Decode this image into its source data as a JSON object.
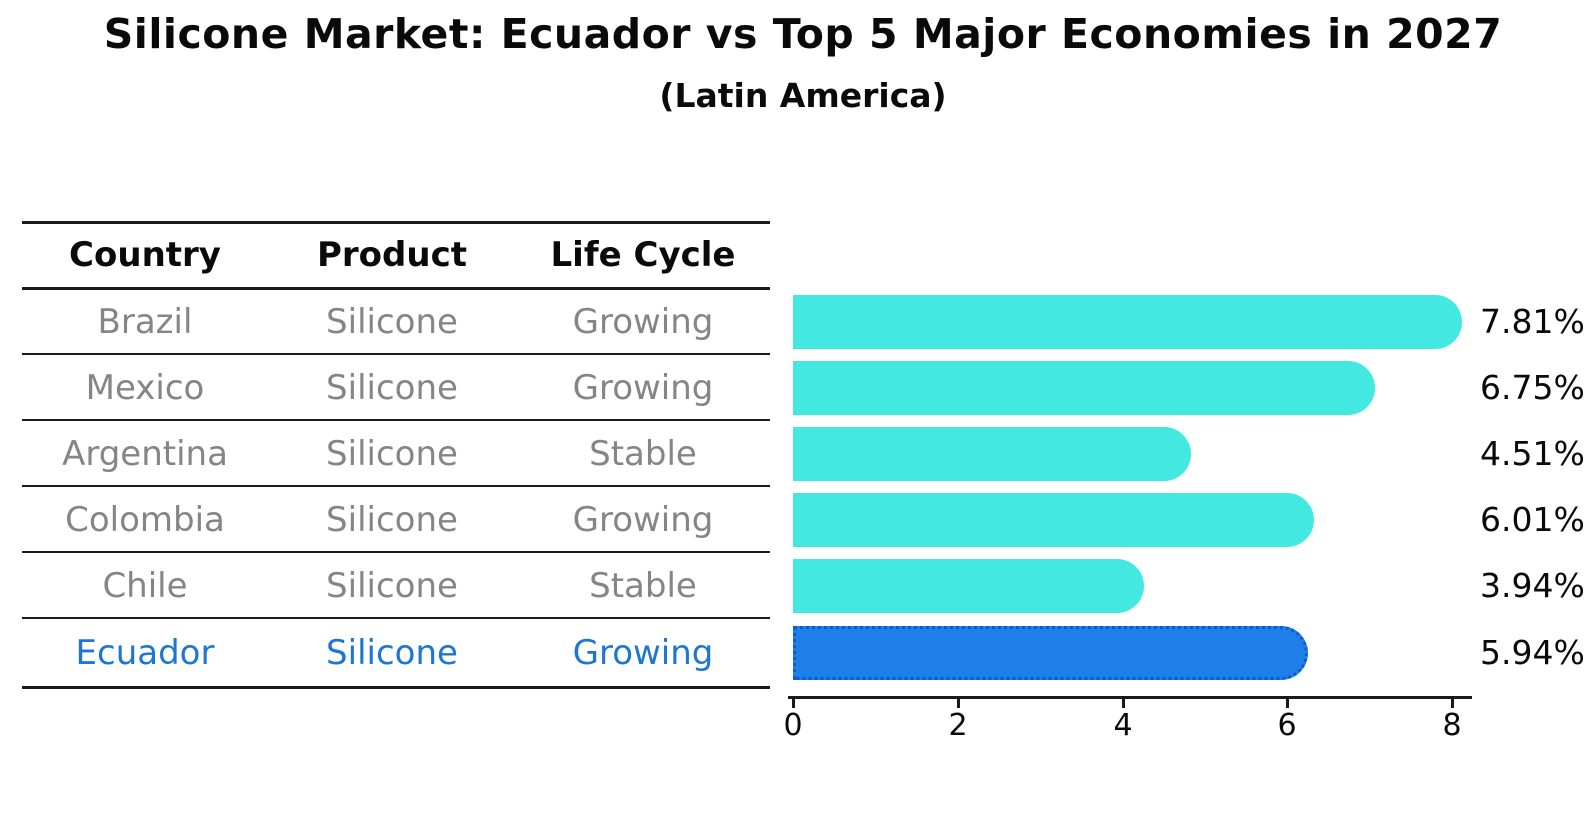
{
  "title": "Silicone Market: Ecuador vs Top 5 Major Economies in 2027",
  "subtitle": "(Latin America)",
  "table": {
    "headers": [
      "Country",
      "Product",
      "Life Cycle"
    ],
    "rows": [
      {
        "country": "Brazil",
        "product": "Silicone",
        "life_cycle": "Growing"
      },
      {
        "country": "Mexico",
        "product": "Silicone",
        "life_cycle": "Growing"
      },
      {
        "country": "Argentina",
        "product": "Silicone",
        "life_cycle": "Stable"
      },
      {
        "country": "Colombia",
        "product": "Silicone",
        "life_cycle": "Growing"
      },
      {
        "country": "Chile",
        "product": "Silicone",
        "life_cycle": "Stable"
      },
      {
        "country": "Ecuador",
        "product": "Silicone",
        "life_cycle": "Growing"
      }
    ],
    "highlighted_row": "Ecuador"
  },
  "chart_data": {
    "type": "bar",
    "orientation": "horizontal",
    "categories": [
      "Brazil",
      "Mexico",
      "Argentina",
      "Colombia",
      "Chile",
      "Ecuador"
    ],
    "values": [
      7.81,
      6.75,
      4.51,
      6.01,
      3.94,
      5.94
    ],
    "value_labels": [
      "7.81%",
      "6.75%",
      "4.51%",
      "6.01%",
      "3.94%",
      "5.94%"
    ],
    "highlighted_category": "Ecuador",
    "xlim": [
      0,
      8
    ],
    "xticks": [
      0,
      2,
      4,
      6,
      8
    ],
    "xtick_labels": [
      "0",
      "2",
      "4",
      "6",
      "8"
    ],
    "bar_color": "#43E8E0",
    "highlight_bar_color": "#1E7FE8",
    "highlight_edge_color": "#0F5BC8",
    "highlight_text_color": "#1D76D2",
    "grid": false,
    "legend": false
  }
}
